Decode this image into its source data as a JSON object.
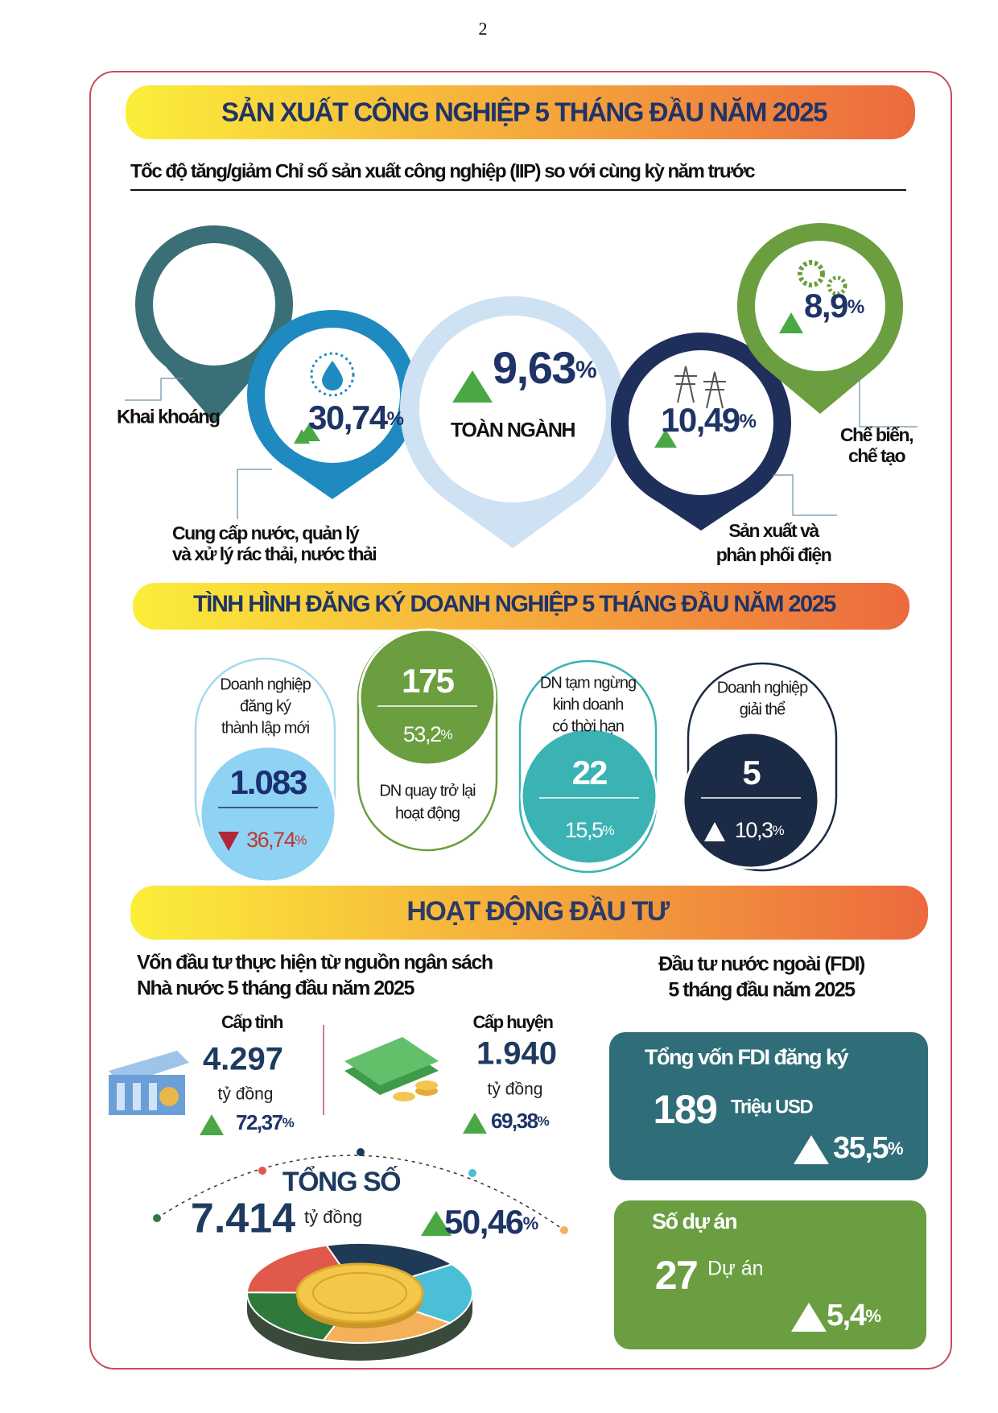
{
  "page_number": "2",
  "industry": {
    "title": "SẢN XUẤT CÔNG NGHIỆP 5 THÁNG ĐẦU NĂM 2025",
    "subtitle": "Tốc độ tăng/giảm Chỉ số sản xuất công nghiệp (IIP) so với cùng kỳ năm trước",
    "mining": {
      "label": "Khai khoáng"
    },
    "water": {
      "label": [
        "Cung cấp nước, quản lý",
        "và xử lý rác thải, nước thải"
      ],
      "value": "30,74",
      "unit": "%"
    },
    "overall": {
      "label": "TOÀN NGÀNH",
      "value": "9,63",
      "unit": "%"
    },
    "electricity": {
      "label": [
        "Sản xuất và",
        "phân phối điện"
      ],
      "value": "10,49",
      "unit": "%"
    },
    "manufacturing": {
      "label": [
        "Chế biến,",
        "chế tạo"
      ],
      "value": "8,9",
      "unit": "%"
    }
  },
  "business": {
    "title": "TÌNH HÌNH ĐĂNG KÝ DOANH NGHIỆP 5 THÁNG ĐẦU NĂM 2025",
    "cards": [
      {
        "label": [
          "Doanh nghiệp",
          "đăng ký",
          "thành lập mới"
        ],
        "value": "1.083",
        "change": "36,74",
        "unit": "%"
      },
      {
        "label": [
          "DN quay trở lại",
          "hoạt động"
        ],
        "value": "175",
        "change": "53,2",
        "unit": "%"
      },
      {
        "label": [
          "DN tạm ngừng",
          "kinh doanh",
          "có thời hạn"
        ],
        "value": "22",
        "change": "15,5",
        "unit": "%"
      },
      {
        "label": [
          "Doanh nghiệp",
          "giải thể"
        ],
        "value": "5",
        "change": "10,3",
        "unit": "%"
      }
    ]
  },
  "investment": {
    "title": "HOẠT ĐỘNG ĐẦU TƯ",
    "state_budget": {
      "heading": [
        "Vốn đầu tư thực hiện từ nguồn ngân sách",
        "Nhà nước 5 tháng đầu năm 2025"
      ],
      "province": {
        "label": "Cấp tỉnh",
        "value": "4.297",
        "unit": "tỷ đồng",
        "change": "72,37",
        "change_unit": "%"
      },
      "district": {
        "label": "Cấp huyện",
        "value": "1.940",
        "unit": "tỷ đồng",
        "change": "69,38",
        "change_unit": "%"
      },
      "total": {
        "label": "TỔNG SỐ",
        "value": "7.414",
        "unit": "tỷ đồng",
        "change": "50,46",
        "change_unit": "%"
      }
    },
    "fdi": {
      "heading": [
        "Đầu tư nước ngoài (FDI)",
        "5 tháng đầu năm 2025"
      ],
      "capital": {
        "label": "Tổng vốn FDI đăng ký",
        "value": "189",
        "unit": "Triệu USD",
        "change": "35,5",
        "change_unit": "%"
      },
      "projects": {
        "label": "Số dự án",
        "value": "27",
        "unit": "Dự án",
        "change": "5,4",
        "change_unit": "%"
      }
    }
  }
}
